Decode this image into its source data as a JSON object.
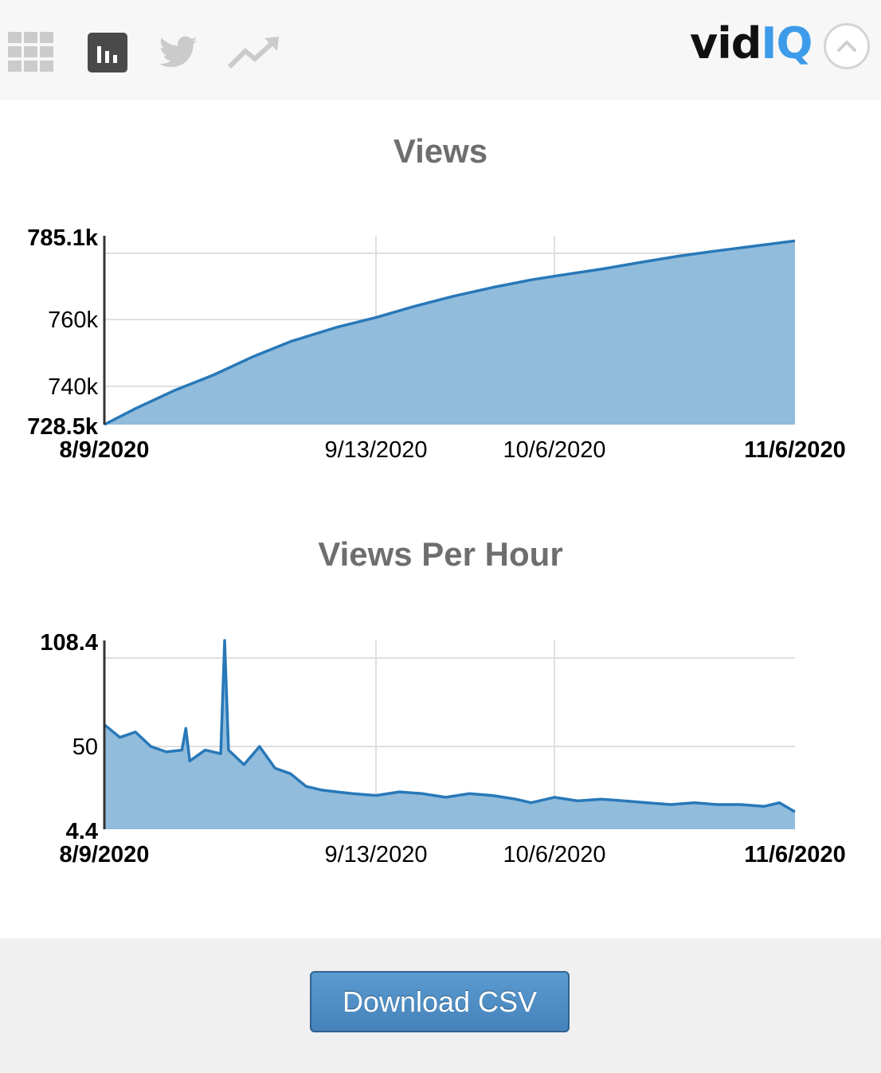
{
  "toolbar": {
    "icons": [
      "grid-icon",
      "bar-chart-icon",
      "twitter-icon",
      "trending-icon"
    ],
    "active_icon": "bar-chart-icon"
  },
  "logo": {
    "part1": "vid",
    "part2": "IQ"
  },
  "colors": {
    "line": "#2878b8",
    "fill": "#8fbbdb",
    "grid": "#dedede",
    "title": "#6e6e6e",
    "logo_accent": "#3d9be9",
    "button": "#4f8dc6"
  },
  "chart_data": [
    {
      "type": "area",
      "title": "Views",
      "y_ticks": [
        {
          "label": "785.1k",
          "value": 785100,
          "bold": true
        },
        {
          "label": "760k",
          "value": 760000,
          "bold": false
        },
        {
          "label": "740k",
          "value": 740000,
          "bold": false
        },
        {
          "label": "728.5k",
          "value": 728500,
          "bold": true
        }
      ],
      "x_ticks": [
        {
          "label": "8/9/2020",
          "date": "2020-08-09",
          "bold": true
        },
        {
          "label": "9/13/2020",
          "date": "2020-09-13",
          "bold": false
        },
        {
          "label": "10/6/2020",
          "date": "2020-10-06",
          "bold": false
        },
        {
          "label": "11/6/2020",
          "date": "2020-11-06",
          "bold": true
        }
      ],
      "xlim": [
        "2020-08-09",
        "2020-11-06"
      ],
      "ylim": [
        728500,
        785100
      ],
      "grid": true,
      "series": [
        {
          "x": [
            "2020-08-09",
            "2020-08-13",
            "2020-08-18",
            "2020-08-23",
            "2020-08-28",
            "2020-09-02",
            "2020-09-08",
            "2020-09-13",
            "2020-09-18",
            "2020-09-23",
            "2020-09-28",
            "2020-10-03",
            "2020-10-06",
            "2020-10-12",
            "2020-10-17",
            "2020-10-22",
            "2020-10-27",
            "2020-11-01",
            "2020-11-06"
          ],
          "values": [
            728500,
            733300,
            738700,
            743300,
            748700,
            753400,
            757700,
            760600,
            764000,
            767000,
            769600,
            771900,
            773000,
            775100,
            777100,
            779000,
            780600,
            782100,
            783600
          ]
        }
      ]
    },
    {
      "type": "area",
      "title": "Views Per Hour",
      "y_ticks": [
        {
          "label": "108.4",
          "value": 108.4,
          "bold": true
        },
        {
          "label": "50",
          "value": 50,
          "bold": false
        },
        {
          "label": "4.4",
          "value": 4.4,
          "bold": true
        }
      ],
      "x_ticks": [
        {
          "label": "8/9/2020",
          "date": "2020-08-09",
          "bold": true
        },
        {
          "label": "9/13/2020",
          "date": "2020-09-13",
          "bold": false
        },
        {
          "label": "10/6/2020",
          "date": "2020-10-06",
          "bold": false
        },
        {
          "label": "11/6/2020",
          "date": "2020-11-06",
          "bold": true
        }
      ],
      "xlim": [
        "2020-08-09",
        "2020-11-06"
      ],
      "ylim": [
        4.4,
        108.4
      ],
      "grid": true,
      "series": [
        {
          "x": [
            "2020-08-09",
            "2020-08-11",
            "2020-08-13",
            "2020-08-15",
            "2020-08-17",
            "2020-08-19",
            "2020-08-19T12:00",
            "2020-08-20",
            "2020-08-22",
            "2020-08-24",
            "2020-08-24T12:00",
            "2020-08-25",
            "2020-08-27",
            "2020-08-29",
            "2020-08-31",
            "2020-09-02",
            "2020-09-04",
            "2020-09-06",
            "2020-09-08",
            "2020-09-10",
            "2020-09-13",
            "2020-09-16",
            "2020-09-19",
            "2020-09-22",
            "2020-09-25",
            "2020-09-28",
            "2020-10-01",
            "2020-10-03",
            "2020-10-06",
            "2020-10-09",
            "2020-10-12",
            "2020-10-15",
            "2020-10-18",
            "2020-10-21",
            "2020-10-24",
            "2020-10-27",
            "2020-10-30",
            "2020-11-02",
            "2020-11-04",
            "2020-11-06"
          ],
          "values": [
            62,
            55,
            58,
            50,
            47,
            48,
            60,
            42,
            48,
            46,
            108.4,
            48,
            40,
            50,
            38,
            35,
            28,
            26,
            25,
            24,
            23,
            25,
            24,
            22,
            24,
            23,
            21,
            19,
            22,
            20,
            21,
            20,
            19,
            18,
            19,
            18,
            18,
            17,
            19,
            14
          ]
        }
      ]
    }
  ],
  "footer": {
    "download_label": "Download CSV"
  }
}
